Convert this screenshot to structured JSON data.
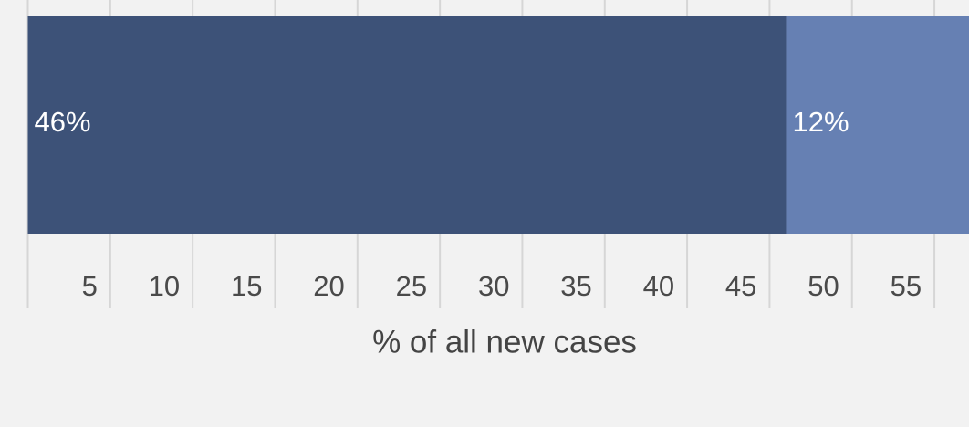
{
  "chart_data": {
    "type": "stacked-barh",
    "categories": [
      null
    ],
    "series": [
      {
        "color": "#3d5278",
        "values": [
          46
        ],
        "value_labels": [
          "46%"
        ]
      },
      {
        "color": "#6680b3",
        "values": [
          12
        ],
        "value_labels": [
          "12%"
        ]
      }
    ],
    "xlabel": "% of all new cases",
    "xlim": [
      0,
      57.1
    ],
    "xticks": [
      5,
      10,
      15,
      20,
      25,
      30,
      35,
      40,
      45,
      50,
      55
    ],
    "grid": true
  }
}
